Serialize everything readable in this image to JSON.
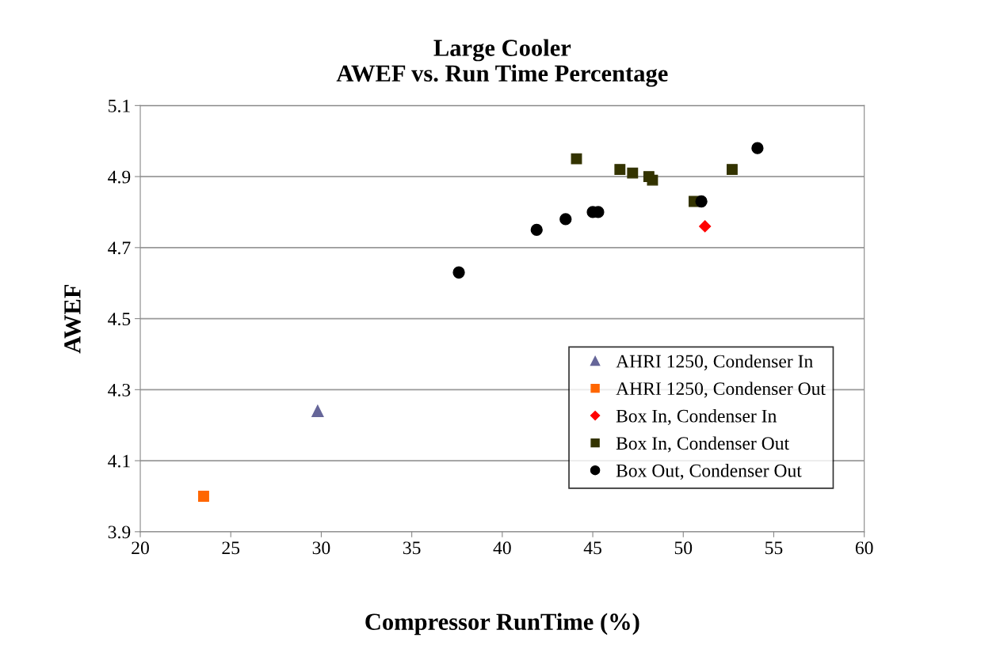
{
  "chart_data": {
    "type": "scatter",
    "title": "Large Cooler\nAWEF vs. Run Time Percentage",
    "xlabel": "Compressor RunTime (%)",
    "ylabel": "AWEF",
    "xlim": [
      20,
      60
    ],
    "xticks": [
      20,
      25,
      30,
      35,
      40,
      45,
      50,
      55,
      60
    ],
    "ylim": [
      3.9,
      5.1
    ],
    "yticks": [
      3.9,
      4.1,
      4.3,
      4.5,
      4.7,
      4.9,
      5.1
    ],
    "grid": "y",
    "legend": "bottom right",
    "series": [
      {
        "name": "AHRI 1250, Condenser In",
        "color": "#666699",
        "marker": "triangle",
        "x": [
          29.8
        ],
        "values": [
          4.24
        ]
      },
      {
        "name": "AHRI 1250, Condenser Out",
        "color": "#ff6600",
        "marker": "square",
        "x": [
          23.5
        ],
        "values": [
          4.0
        ]
      },
      {
        "name": "Box In, Condenser In",
        "color": "#ff0000",
        "marker": "diamond",
        "x": [
          51.2
        ],
        "values": [
          4.76
        ]
      },
      {
        "name": "Box In, Condenser Out",
        "color": "#333300",
        "marker": "square",
        "x": [
          44.1,
          46.5,
          47.2,
          48.1,
          48.3,
          50.6,
          52.7
        ],
        "values": [
          4.95,
          4.92,
          4.91,
          4.9,
          4.89,
          4.83,
          4.92
        ]
      },
      {
        "name": "Box Out, Condenser Out",
        "color": "#000000",
        "marker": "circle",
        "x": [
          37.6,
          41.9,
          43.5,
          45.0,
          45.3,
          51.0,
          54.1
        ],
        "values": [
          4.63,
          4.75,
          4.78,
          4.8,
          4.8,
          4.83,
          4.98
        ]
      }
    ]
  }
}
